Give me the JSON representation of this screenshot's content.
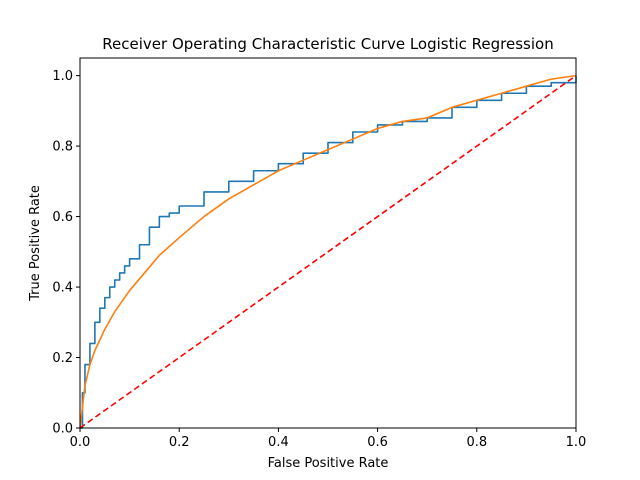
{
  "chart_data": {
    "type": "line",
    "title": "Receiver Operating Characteristic Curve Logistic Regression",
    "xlabel": "False Positive Rate",
    "ylabel": "True Positive Rate",
    "xlim": [
      0,
      1
    ],
    "ylim": [
      0,
      1.05
    ],
    "x_ticks": [
      "0.0",
      "0.2",
      "0.4",
      "0.6",
      "0.8",
      "1.0"
    ],
    "y_ticks": [
      "0.0",
      "0.2",
      "0.4",
      "0.6",
      "0.8",
      "1.0"
    ],
    "grid": false,
    "legend": "none",
    "series": [
      {
        "color": "#1f77b4",
        "style": "step",
        "x": [
          0,
          0.005,
          0.01,
          0.02,
          0.03,
          0.04,
          0.05,
          0.06,
          0.07,
          0.08,
          0.09,
          0.1,
          0.12,
          0.14,
          0.16,
          0.18,
          0.2,
          0.25,
          0.3,
          0.35,
          0.4,
          0.45,
          0.5,
          0.55,
          0.6,
          0.65,
          0.7,
          0.75,
          0.8,
          0.85,
          0.9,
          0.95,
          1.0
        ],
        "y": [
          0,
          0.1,
          0.18,
          0.24,
          0.3,
          0.34,
          0.37,
          0.4,
          0.42,
          0.44,
          0.46,
          0.48,
          0.52,
          0.57,
          0.6,
          0.61,
          0.63,
          0.67,
          0.7,
          0.73,
          0.75,
          0.78,
          0.81,
          0.84,
          0.86,
          0.87,
          0.88,
          0.91,
          0.93,
          0.95,
          0.97,
          0.98,
          1.0
        ]
      },
      {
        "color": "#ff7f0e",
        "style": "line",
        "x": [
          0,
          0.01,
          0.02,
          0.03,
          0.05,
          0.07,
          0.1,
          0.13,
          0.16,
          0.2,
          0.25,
          0.3,
          0.35,
          0.4,
          0.45,
          0.5,
          0.55,
          0.6,
          0.65,
          0.7,
          0.75,
          0.8,
          0.85,
          0.9,
          0.95,
          1.0
        ],
        "y": [
          0,
          0.12,
          0.18,
          0.22,
          0.28,
          0.33,
          0.39,
          0.44,
          0.49,
          0.54,
          0.6,
          0.65,
          0.69,
          0.73,
          0.76,
          0.79,
          0.82,
          0.85,
          0.87,
          0.88,
          0.91,
          0.93,
          0.95,
          0.97,
          0.99,
          1.0
        ]
      },
      {
        "color": "#ff0000",
        "style": "dashed",
        "x": [
          0,
          1
        ],
        "y": [
          0,
          1
        ]
      }
    ]
  }
}
